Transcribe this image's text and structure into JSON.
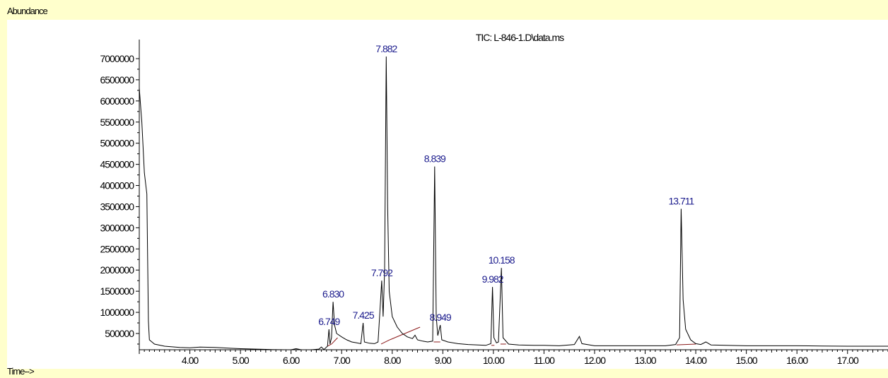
{
  "chart_data": {
    "type": "line",
    "title": "TIC: L-846-1.D\\data.ms",
    "ylabel": "Abundance",
    "xlabel": "Time-->",
    "xlim": [
      3.0,
      17.8
    ],
    "ylim": [
      0,
      7300000
    ],
    "x_ticks": [
      "4.00",
      "5.00",
      "6.00",
      "7.00",
      "8.00",
      "9.00",
      "10.00",
      "11.00",
      "12.00",
      "13.00",
      "14.00",
      "15.00",
      "16.00",
      "17.00"
    ],
    "y_ticks": [
      "500000",
      "1000000",
      "1500000",
      "2000000",
      "2500000",
      "3000000",
      "3500000",
      "4000000",
      "4500000",
      "5000000",
      "5500000",
      "6000000",
      "6500000",
      "7000000"
    ],
    "peaks": [
      {
        "label": "6.749",
        "x": 6.749,
        "y": 600000
      },
      {
        "label": "6.830",
        "x": 6.83,
        "y": 1250000
      },
      {
        "label": "7.425",
        "x": 7.425,
        "y": 750000
      },
      {
        "label": "7.792",
        "x": 7.792,
        "y": 1750000
      },
      {
        "label": "7.882",
        "x": 7.882,
        "y": 7050000
      },
      {
        "label": "8.839",
        "x": 8.839,
        "y": 4450000
      },
      {
        "label": "8.949",
        "x": 8.949,
        "y": 700000
      },
      {
        "label": "9.982",
        "x": 9.982,
        "y": 1600000
      },
      {
        "label": "10.158",
        "x": 10.158,
        "y": 2050000
      },
      {
        "label": "13.711",
        "x": 13.711,
        "y": 3450000
      }
    ],
    "series": [
      {
        "color": "#000000",
        "points": [
          [
            3.0,
            6300000
          ],
          [
            3.05,
            5500000
          ],
          [
            3.1,
            4300000
          ],
          [
            3.15,
            3800000
          ],
          [
            3.18,
            800000
          ],
          [
            3.2,
            350000
          ],
          [
            3.3,
            250000
          ],
          [
            3.5,
            200000
          ],
          [
            3.8,
            170000
          ],
          [
            4.0,
            160000
          ],
          [
            4.2,
            180000
          ],
          [
            4.5,
            170000
          ],
          [
            4.8,
            150000
          ],
          [
            5.0,
            140000
          ],
          [
            5.3,
            130000
          ],
          [
            5.6,
            120000
          ],
          [
            5.9,
            110000
          ],
          [
            6.0,
            100000
          ],
          [
            6.1,
            140000
          ],
          [
            6.2,
            100000
          ],
          [
            6.4,
            110000
          ],
          [
            6.55,
            130000
          ],
          [
            6.6,
            180000
          ],
          [
            6.65,
            120000
          ],
          [
            6.72,
            200000
          ],
          [
            6.749,
            600000
          ],
          [
            6.77,
            250000
          ],
          [
            6.8,
            400000
          ],
          [
            6.83,
            1250000
          ],
          [
            6.86,
            700000
          ],
          [
            6.9,
            500000
          ],
          [
            7.0,
            420000
          ],
          [
            7.1,
            350000
          ],
          [
            7.2,
            300000
          ],
          [
            7.3,
            280000
          ],
          [
            7.38,
            260000
          ],
          [
            7.425,
            750000
          ],
          [
            7.45,
            300000
          ],
          [
            7.55,
            270000
          ],
          [
            7.65,
            260000
          ],
          [
            7.72,
            300000
          ],
          [
            7.75,
            900000
          ],
          [
            7.792,
            1750000
          ],
          [
            7.82,
            900000
          ],
          [
            7.85,
            2000000
          ],
          [
            7.882,
            7050000
          ],
          [
            7.91,
            3500000
          ],
          [
            7.94,
            1500000
          ],
          [
            8.0,
            900000
          ],
          [
            8.1,
            650000
          ],
          [
            8.2,
            500000
          ],
          [
            8.3,
            420000
          ],
          [
            8.4,
            380000
          ],
          [
            8.45,
            460000
          ],
          [
            8.5,
            350000
          ],
          [
            8.6,
            320000
          ],
          [
            8.7,
            300000
          ],
          [
            8.8,
            320000
          ],
          [
            8.839,
            4450000
          ],
          [
            8.87,
            900000
          ],
          [
            8.9,
            450000
          ],
          [
            8.949,
            700000
          ],
          [
            8.98,
            350000
          ],
          [
            9.1,
            300000
          ],
          [
            9.3,
            260000
          ],
          [
            9.5,
            240000
          ],
          [
            9.7,
            230000
          ],
          [
            9.85,
            220000
          ],
          [
            9.95,
            260000
          ],
          [
            9.982,
            1600000
          ],
          [
            10.01,
            400000
          ],
          [
            10.06,
            280000
          ],
          [
            10.1,
            300000
          ],
          [
            10.158,
            2050000
          ],
          [
            10.19,
            400000
          ],
          [
            10.3,
            250000
          ],
          [
            10.5,
            230000
          ],
          [
            10.8,
            220000
          ],
          [
            11.0,
            220000
          ],
          [
            11.3,
            210000
          ],
          [
            11.6,
            240000
          ],
          [
            11.7,
            430000
          ],
          [
            11.75,
            260000
          ],
          [
            12.0,
            210000
          ],
          [
            12.5,
            210000
          ],
          [
            13.0,
            210000
          ],
          [
            13.4,
            210000
          ],
          [
            13.6,
            240000
          ],
          [
            13.68,
            400000
          ],
          [
            13.711,
            3450000
          ],
          [
            13.75,
            1300000
          ],
          [
            13.8,
            600000
          ],
          [
            13.9,
            350000
          ],
          [
            14.0,
            260000
          ],
          [
            14.1,
            240000
          ],
          [
            14.2,
            300000
          ],
          [
            14.3,
            230000
          ],
          [
            14.6,
            220000
          ],
          [
            15.0,
            210000
          ],
          [
            15.5,
            210000
          ],
          [
            16.0,
            210000
          ],
          [
            16.5,
            205000
          ],
          [
            17.0,
            200000
          ],
          [
            17.5,
            200000
          ],
          [
            17.8,
            200000
          ]
        ]
      }
    ],
    "baselines": {
      "color": "#8b1a1a",
      "segments": [
        [
          [
            6.72,
            200000
          ],
          [
            6.8,
            250000
          ]
        ],
        [
          [
            6.8,
            250000
          ],
          [
            6.92,
            400000
          ]
        ],
        [
          [
            7.78,
            250000
          ],
          [
            7.95,
            350000
          ]
        ],
        [
          [
            7.95,
            350000
          ],
          [
            8.55,
            650000
          ]
        ],
        [
          [
            8.82,
            300000
          ],
          [
            8.95,
            300000
          ]
        ],
        [
          [
            9.96,
            220000
          ],
          [
            10.02,
            220000
          ]
        ],
        [
          [
            10.14,
            250000
          ],
          [
            10.25,
            250000
          ]
        ],
        [
          [
            13.62,
            230000
          ],
          [
            14.0,
            250000
          ]
        ]
      ]
    }
  }
}
